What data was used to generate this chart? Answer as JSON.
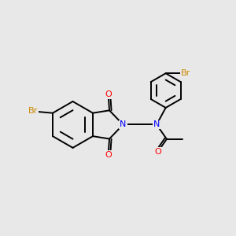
{
  "bg_color": "#e8e8e8",
  "bond_color": "#000000",
  "N_color": "#0000ff",
  "O_color": "#ff0000",
  "Br_color": "#cc8800",
  "font_size_atoms": 8.0,
  "line_width": 1.4,
  "xlim": [
    -1.0,
    9.5
  ],
  "ylim": [
    1.5,
    9.5
  ]
}
